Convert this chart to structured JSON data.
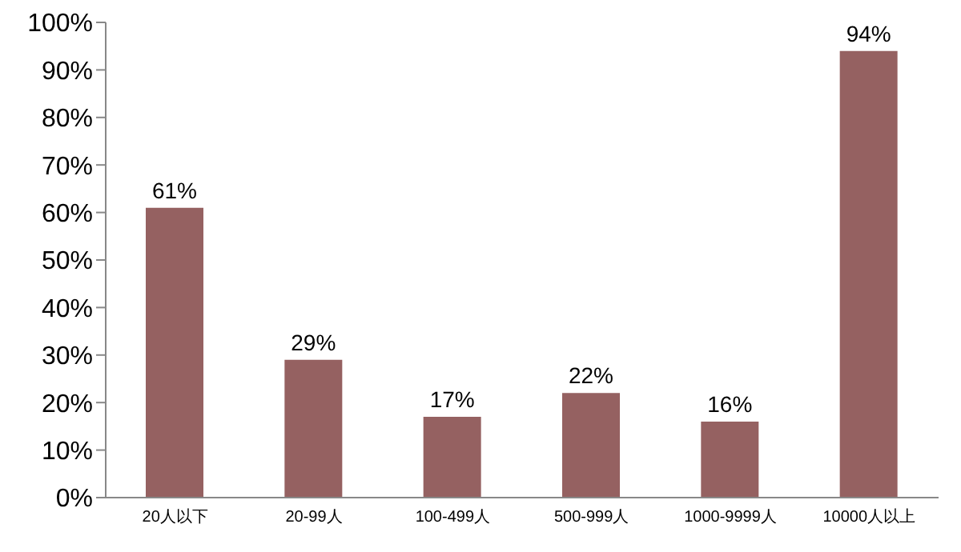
{
  "chart_data": {
    "type": "bar",
    "categories": [
      "20人以下",
      "20-99人",
      "100-499人",
      "500-999人",
      "1000-9999人",
      "10000人以上"
    ],
    "values": [
      61,
      29,
      17,
      22,
      16,
      94
    ],
    "value_labels": [
      "61%",
      "29%",
      "17%",
      "22%",
      "16%",
      "94%"
    ],
    "color": "#956161",
    "ylim": [
      0,
      100
    ],
    "yticks": [
      {
        "value": 0,
        "label": "0%"
      },
      {
        "value": 10,
        "label": "10%"
      },
      {
        "value": 20,
        "label": "20%"
      },
      {
        "value": 30,
        "label": "30%"
      },
      {
        "value": 40,
        "label": "40%"
      },
      {
        "value": 50,
        "label": "50%"
      },
      {
        "value": 60,
        "label": "60%"
      },
      {
        "value": 70,
        "label": "70%"
      },
      {
        "value": 80,
        "label": "80%"
      },
      {
        "value": 90,
        "label": "90%"
      },
      {
        "value": 100,
        "label": "100%"
      }
    ],
    "grid": false,
    "legend": false
  }
}
